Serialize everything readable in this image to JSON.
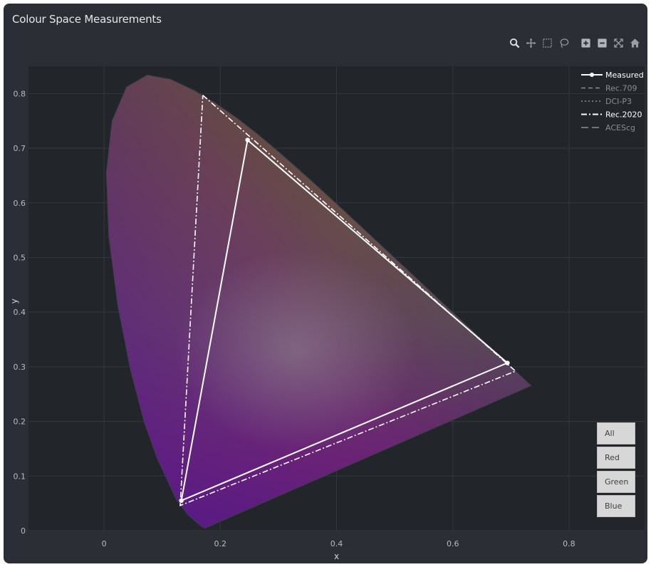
{
  "title": "Colour Space Measurements",
  "toolbar": [
    {
      "name": "zoom-icon"
    },
    {
      "name": "pan-icon"
    },
    {
      "name": "box-select-icon"
    },
    {
      "name": "lasso-select-icon"
    },
    {
      "name": "zoom-in-icon"
    },
    {
      "name": "zoom-out-icon"
    },
    {
      "name": "autoscale-icon"
    },
    {
      "name": "reset-axes-icon"
    }
  ],
  "buttons": {
    "all": "All",
    "red": "Red",
    "green": "Green",
    "blue": "Blue"
  },
  "chart_data": {
    "type": "scatter",
    "xlabel": "x",
    "ylabel": "y",
    "xlim": [
      -0.13,
      0.93
    ],
    "ylim": [
      0,
      0.85
    ],
    "xticks": [
      0,
      0.2,
      0.4,
      0.6,
      0.8
    ],
    "xtick_labels": [
      "0",
      "0.2",
      "0.4",
      "0.6",
      "0.8"
    ],
    "yticks": [
      0,
      0.1,
      0.2,
      0.3,
      0.4,
      0.5,
      0.6,
      0.7,
      0.8
    ],
    "ytick_labels": [
      "0",
      "0.1",
      "0.2",
      "0.3",
      "0.4",
      "0.5",
      "0.6",
      "0.7",
      "0.8"
    ],
    "legend_position": "top-right",
    "series": [
      {
        "name": "Measured",
        "style": "solid-markers",
        "color": "#ffffff",
        "highlighted": true,
        "x": [
          0.247,
          0.694,
          0.133,
          0.247
        ],
        "y": [
          0.715,
          0.307,
          0.055,
          0.715
        ]
      },
      {
        "name": "Rec.709",
        "style": "dashed",
        "color": "#8a8d92",
        "highlighted": false,
        "x": [],
        "y": []
      },
      {
        "name": "DCI-P3",
        "style": "dotted",
        "color": "#8a8d92",
        "highlighted": false,
        "x": [],
        "y": []
      },
      {
        "name": "Rec.2020",
        "style": "dashdot",
        "color": "#ffffff",
        "highlighted": true,
        "x": [
          0.17,
          0.708,
          0.131,
          0.17
        ],
        "y": [
          0.797,
          0.292,
          0.046,
          0.797
        ]
      },
      {
        "name": "ACEScg",
        "style": "longdash",
        "color": "#8a8d92",
        "highlighted": false,
        "x": [],
        "y": []
      }
    ],
    "spectral_locus": {
      "x": [
        0.1741,
        0.1738,
        0.1733,
        0.1726,
        0.1714,
        0.1689,
        0.1644,
        0.1566,
        0.144,
        0.1241,
        0.0913,
        0.0687,
        0.0454,
        0.0235,
        0.0082,
        0.0039,
        0.0139,
        0.0389,
        0.0743,
        0.1142,
        0.1547,
        0.1929,
        0.2296,
        0.2658,
        0.3016,
        0.3373,
        0.3731,
        0.4087,
        0.4441,
        0.4788,
        0.5125,
        0.5448,
        0.5752,
        0.6029,
        0.627,
        0.6482,
        0.6658,
        0.6915,
        0.7079,
        0.719,
        0.726,
        0.73,
        0.7334,
        0.7347
      ],
      "y": [
        0.005,
        0.0049,
        0.0048,
        0.0048,
        0.0051,
        0.0069,
        0.0109,
        0.0177,
        0.0297,
        0.0578,
        0.1327,
        0.2007,
        0.295,
        0.4127,
        0.5384,
        0.6548,
        0.7502,
        0.812,
        0.8338,
        0.8262,
        0.8059,
        0.7816,
        0.7543,
        0.7243,
        0.6923,
        0.6589,
        0.6245,
        0.5896,
        0.5547,
        0.5202,
        0.4866,
        0.4544,
        0.4242,
        0.3965,
        0.3725,
        0.3514,
        0.334,
        0.3083,
        0.292,
        0.2809,
        0.274,
        0.27,
        0.2666,
        0.2653
      ]
    }
  }
}
